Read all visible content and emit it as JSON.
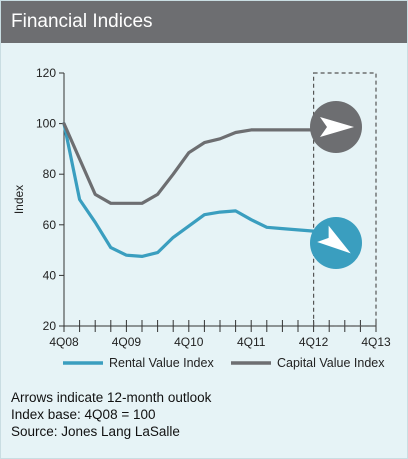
{
  "header": {
    "title": "Financial Indices"
  },
  "chart_data": {
    "type": "line",
    "ylabel": "Index",
    "ylim": [
      20,
      120
    ],
    "yticks": [
      20,
      40,
      60,
      80,
      100,
      120
    ],
    "xticklabels": [
      "4Q08",
      "4Q09",
      "4Q10",
      "4Q11",
      "4Q12",
      "4Q13"
    ],
    "x_quarters_range": [
      0,
      20
    ],
    "outlook_region_quarters": [
      16,
      20
    ],
    "series": [
      {
        "name": "Rental Value Index",
        "color": "#3a9ebf",
        "x": [
          0,
          1,
          2,
          3,
          4,
          5,
          6,
          7,
          8,
          9,
          10,
          11,
          12,
          13,
          14,
          15,
          16
        ],
        "values": [
          100,
          70,
          61,
          51,
          48,
          47.5,
          49,
          55,
          59.5,
          64,
          65,
          65.5,
          62,
          59,
          58.5,
          58,
          57.5
        ]
      },
      {
        "name": "Capital Value Index",
        "color": "#6d6e71",
        "x": [
          0,
          1,
          2,
          3,
          4,
          5,
          6,
          7,
          8,
          9,
          10,
          11,
          12,
          13,
          14,
          15,
          16
        ],
        "values": [
          100,
          86,
          72,
          68.5,
          68.5,
          68.5,
          72,
          80,
          88.5,
          92.5,
          94,
          96.5,
          97.5,
          97.5,
          97.5,
          97.5,
          97.5
        ]
      }
    ],
    "outlook_arrows": [
      {
        "series": "Capital Value Index",
        "direction": "right",
        "color": "#6d6e71",
        "icon": "right-arrow-icon"
      },
      {
        "series": "Rental Value Index",
        "direction": "down-right",
        "color": "#3a9ebf",
        "icon": "down-right-arrow-icon"
      }
    ],
    "legend_position": "bottom"
  },
  "notes": [
    "Arrows indicate 12-month outlook",
    "Index base: 4Q08 = 100",
    "Source: Jones Lang LaSalle"
  ]
}
